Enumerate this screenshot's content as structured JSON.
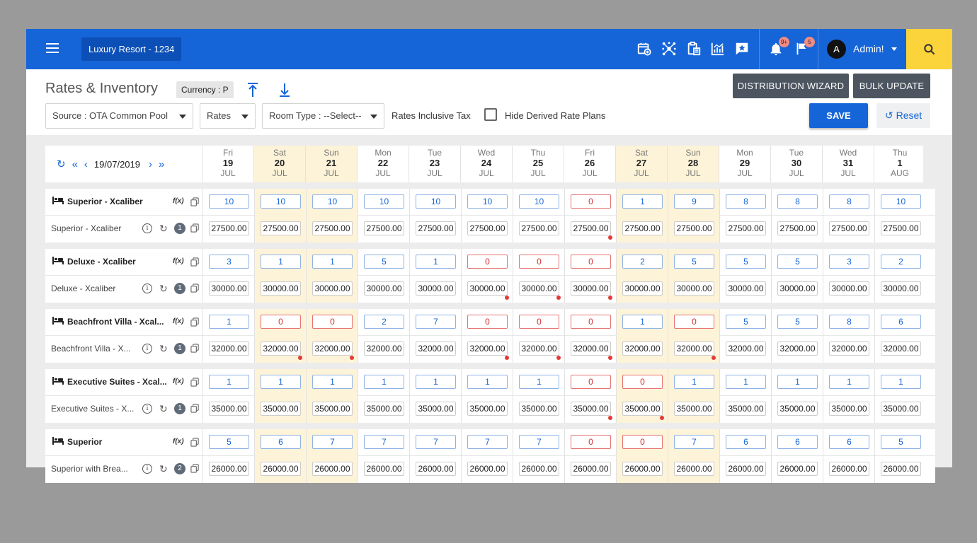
{
  "topbar": {
    "property": "Luxury Resort -  1234",
    "icons": [
      "calendar-add-icon",
      "network-icon",
      "clipboard-icon",
      "chart-icon",
      "star-message-icon"
    ],
    "notif_count": "9+",
    "flag_count": "5",
    "avatar_letter": "A",
    "user": "Admin!"
  },
  "header": {
    "title": "Rates & Inventory",
    "currency": "Currency : P",
    "distribution_wizard": "DISTRIBUTION WIZARD",
    "bulk_update": "BULK UPDATE",
    "save": "SAVE",
    "reset": "Reset"
  },
  "filters": {
    "source": "Source :  OTA Common Pool",
    "rates": "Rates",
    "room_type": "Room Type :  --Select--",
    "rates_inclusive_tax": "Rates Inclusive Tax",
    "hide_derived": "Hide Derived Rate Plans",
    "hide_derived_checked": false
  },
  "date_nav": {
    "date": "19/07/2019"
  },
  "columns": [
    {
      "dow": "Fri",
      "day": "19",
      "mon": "JUL",
      "weekend": false
    },
    {
      "dow": "Sat",
      "day": "20",
      "mon": "JUL",
      "weekend": true
    },
    {
      "dow": "Sun",
      "day": "21",
      "mon": "JUL",
      "weekend": true
    },
    {
      "dow": "Mon",
      "day": "22",
      "mon": "JUL",
      "weekend": false
    },
    {
      "dow": "Tue",
      "day": "23",
      "mon": "JUL",
      "weekend": false
    },
    {
      "dow": "Wed",
      "day": "24",
      "mon": "JUL",
      "weekend": false
    },
    {
      "dow": "Thu",
      "day": "25",
      "mon": "JUL",
      "weekend": false
    },
    {
      "dow": "Fri",
      "day": "26",
      "mon": "JUL",
      "weekend": false
    },
    {
      "dow": "Sat",
      "day": "27",
      "mon": "JUL",
      "weekend": true
    },
    {
      "dow": "Sun",
      "day": "28",
      "mon": "JUL",
      "weekend": true
    },
    {
      "dow": "Mon",
      "day": "29",
      "mon": "JUL",
      "weekend": false
    },
    {
      "dow": "Tue",
      "day": "30",
      "mon": "JUL",
      "weekend": false
    },
    {
      "dow": "Wed",
      "day": "31",
      "mon": "JUL",
      "weekend": false
    },
    {
      "dow": "Thu",
      "day": "1",
      "mon": "AUG",
      "weekend": false
    }
  ],
  "rooms": [
    {
      "name": "Superior - Xcaliber",
      "rate_plan": "Superior - Xcaliber",
      "fx": "f(x)",
      "derived_count": "1",
      "inventory": [
        "10",
        "10",
        "10",
        "10",
        "10",
        "10",
        "10",
        "0",
        "1",
        "9",
        "8",
        "8",
        "8",
        "10"
      ],
      "rates": [
        "27500.00",
        "27500.00",
        "27500.00",
        "27500.00",
        "27500.00",
        "27500.00",
        "27500.00",
        "27500.00",
        "27500.00",
        "27500.00",
        "27500.00",
        "27500.00",
        "27500.00",
        "27500.00"
      ],
      "flags": [
        false,
        false,
        false,
        false,
        false,
        false,
        false,
        true,
        false,
        false,
        false,
        false,
        false,
        false
      ]
    },
    {
      "name": "Deluxe - Xcaliber",
      "rate_plan": "Deluxe - Xcaliber",
      "fx": "f(x)",
      "derived_count": "1",
      "inventory": [
        "3",
        "1",
        "1",
        "5",
        "1",
        "0",
        "0",
        "0",
        "2",
        "5",
        "5",
        "5",
        "3",
        "2"
      ],
      "rates": [
        "30000.00",
        "30000.00",
        "30000.00",
        "30000.00",
        "30000.00",
        "30000.00",
        "30000.00",
        "30000.00",
        "30000.00",
        "30000.00",
        "30000.00",
        "30000.00",
        "30000.00",
        "30000.00"
      ],
      "flags": [
        false,
        false,
        false,
        false,
        false,
        true,
        true,
        true,
        false,
        false,
        false,
        false,
        false,
        false
      ]
    },
    {
      "name": "Beachfront Villa - Xcal...",
      "rate_plan": "Beachfront Villa - X...",
      "fx": "f(x)",
      "derived_count": "1",
      "inventory": [
        "1",
        "0",
        "0",
        "2",
        "7",
        "0",
        "0",
        "0",
        "1",
        "0",
        "5",
        "5",
        "8",
        "6"
      ],
      "rates": [
        "32000.00",
        "32000.00",
        "32000.00",
        "32000.00",
        "32000.00",
        "32000.00",
        "32000.00",
        "32000.00",
        "32000.00",
        "32000.00",
        "32000.00",
        "32000.00",
        "32000.00",
        "32000.00"
      ],
      "flags": [
        false,
        true,
        true,
        false,
        false,
        true,
        true,
        true,
        false,
        true,
        false,
        false,
        false,
        false
      ]
    },
    {
      "name": "Executive Suites - Xcal...",
      "rate_plan": "Executive Suites - X...",
      "fx": "f(x)",
      "derived_count": "1",
      "inventory": [
        "1",
        "1",
        "1",
        "1",
        "1",
        "1",
        "1",
        "0",
        "0",
        "1",
        "1",
        "1",
        "1",
        "1"
      ],
      "rates": [
        "35000.00",
        "35000.00",
        "35000.00",
        "35000.00",
        "35000.00",
        "35000.00",
        "35000.00",
        "35000.00",
        "35000.00",
        "35000.00",
        "35000.00",
        "35000.00",
        "35000.00",
        "35000.00"
      ],
      "flags": [
        false,
        false,
        false,
        false,
        false,
        false,
        false,
        true,
        true,
        false,
        false,
        false,
        false,
        false
      ]
    },
    {
      "name": "Superior",
      "rate_plan": "Superior with Brea...",
      "fx": "f(x)",
      "derived_count": "2",
      "inventory": [
        "5",
        "6",
        "7",
        "7",
        "7",
        "7",
        "7",
        "0",
        "0",
        "7",
        "6",
        "6",
        "6",
        "5"
      ],
      "rates": [
        "26000.00",
        "26000.00",
        "26000.00",
        "26000.00",
        "26000.00",
        "26000.00",
        "26000.00",
        "26000.00",
        "26000.00",
        "26000.00",
        "26000.00",
        "26000.00",
        "26000.00",
        "26000.00"
      ],
      "flags": [
        false,
        false,
        false,
        false,
        false,
        false,
        false,
        false,
        false,
        false,
        false,
        false,
        false,
        false
      ]
    }
  ]
}
